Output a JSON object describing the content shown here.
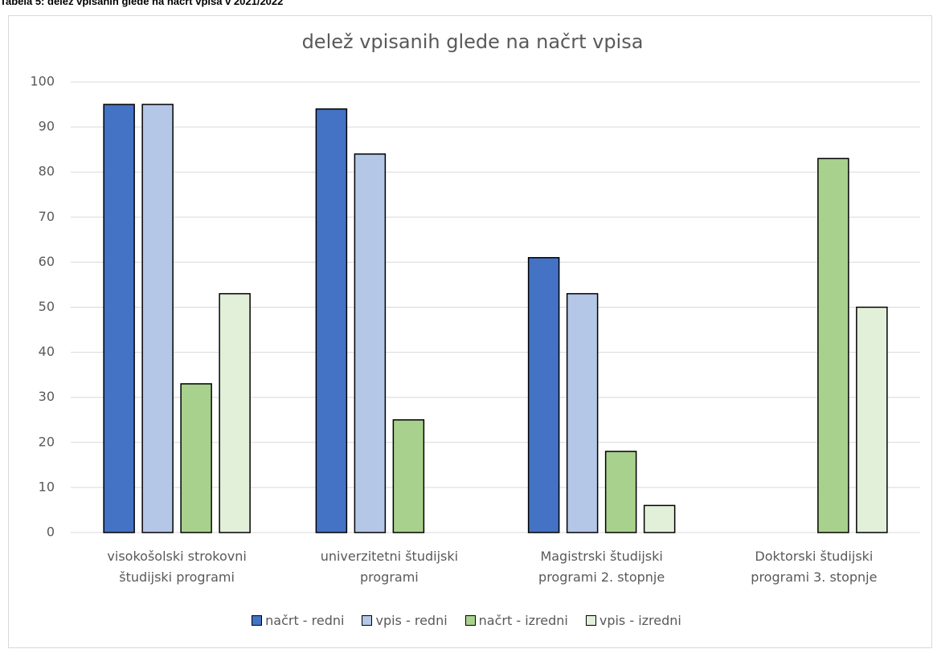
{
  "caption": "Tabela 5: delež vpisanih glede na načrt vpisa v 2021/2022",
  "chart_data": {
    "type": "bar",
    "title": "delež vpisanih glede na načrt vpisa",
    "categories": [
      "visokošolski strokovni študijski programi",
      "univerzitetni študijski programi",
      "Magistrski študijski programi 2. stopnje",
      "Doktorski študijski programi 3. stopnje"
    ],
    "series": [
      {
        "name": "načrt - redni",
        "color": "#4472c4",
        "values": [
          95,
          94,
          61,
          null
        ]
      },
      {
        "name": "vpis - redni",
        "color": "#b4c7e7",
        "values": [
          95,
          84,
          53,
          null
        ]
      },
      {
        "name": "načrt - izredni",
        "color": "#a9d18e",
        "values": [
          33,
          25,
          18,
          83
        ]
      },
      {
        "name": "vpis - izredni",
        "color": "#e2f0d9",
        "values": [
          53,
          null,
          6,
          50
        ]
      }
    ],
    "ylim": [
      0,
      100
    ],
    "yticks": [
      0,
      10,
      20,
      30,
      40,
      50,
      60,
      70,
      80,
      90,
      100
    ],
    "grid": true,
    "legend": "bottom"
  }
}
